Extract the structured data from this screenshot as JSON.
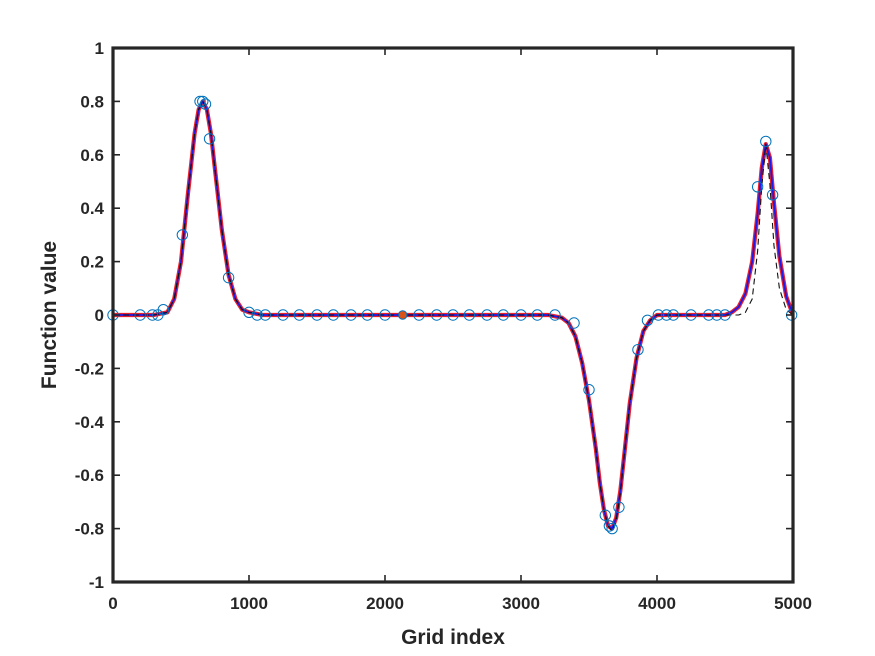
{
  "chart_data": {
    "type": "line",
    "title": "",
    "xlabel": "Grid index",
    "ylabel": "Function value",
    "xlim": [
      0,
      5000
    ],
    "ylim": [
      -1,
      1
    ],
    "xticks": [
      0,
      1000,
      2000,
      3000,
      4000,
      5000
    ],
    "yticks": [
      -1,
      -0.8,
      -0.6,
      -0.4,
      -0.2,
      0,
      0.2,
      0.4,
      0.6,
      0.8,
      1
    ],
    "xtick_labels": [
      "0",
      "1000",
      "2000",
      "3000",
      "4000",
      "5000"
    ],
    "ytick_labels": [
      "-1",
      "-0.8",
      "-0.6",
      "-0.4",
      "-0.2",
      "0",
      "0.2",
      "0.4",
      "0.6",
      "0.8",
      "1"
    ],
    "grid": false,
    "box": true,
    "series": [
      {
        "style": "solid-red",
        "color": "#e8202a",
        "x": [
          0,
          200,
          300,
          400,
          450,
          500,
          550,
          600,
          630,
          660,
          690,
          720,
          760,
          800,
          850,
          900,
          950,
          1000,
          1100,
          1200,
          1400,
          2000,
          3000,
          3200,
          3300,
          3350,
          3400,
          3450,
          3500,
          3550,
          3580,
          3610,
          3640,
          3670,
          3700,
          3730,
          3760,
          3800,
          3850,
          3900,
          3950,
          4000,
          4200,
          4500,
          4550,
          4600,
          4650,
          4700,
          4740,
          4770,
          4800,
          4830,
          4860,
          4900,
          4950,
          5000
        ],
        "y": [
          0,
          0,
          0,
          0.01,
          0.06,
          0.2,
          0.45,
          0.68,
          0.77,
          0.8,
          0.77,
          0.68,
          0.5,
          0.32,
          0.15,
          0.06,
          0.02,
          0.01,
          0,
          0,
          0,
          0,
          0,
          0,
          -0.01,
          -0.03,
          -0.08,
          -0.18,
          -0.32,
          -0.5,
          -0.63,
          -0.73,
          -0.79,
          -0.8,
          -0.76,
          -0.66,
          -0.52,
          -0.33,
          -0.16,
          -0.06,
          -0.02,
          0,
          0,
          0,
          0.01,
          0.03,
          0.08,
          0.2,
          0.38,
          0.55,
          0.64,
          0.59,
          0.42,
          0.22,
          0.07,
          0
        ]
      },
      {
        "style": "solid-blue",
        "color": "#1a1aee",
        "x": [
          0,
          200,
          300,
          400,
          450,
          500,
          550,
          600,
          630,
          660,
          690,
          720,
          760,
          800,
          850,
          900,
          950,
          1000,
          1100,
          1200,
          1400,
          2000,
          3000,
          3200,
          3300,
          3350,
          3400,
          3450,
          3500,
          3550,
          3580,
          3610,
          3640,
          3670,
          3700,
          3730,
          3760,
          3800,
          3850,
          3900,
          3950,
          4000,
          4200,
          4500,
          4550,
          4600,
          4650,
          4700,
          4740,
          4770,
          4800,
          4830,
          4860,
          4900,
          4950,
          5000
        ],
        "y": [
          0,
          0,
          0,
          0.01,
          0.06,
          0.2,
          0.45,
          0.68,
          0.77,
          0.8,
          0.77,
          0.68,
          0.5,
          0.32,
          0.15,
          0.06,
          0.02,
          0.01,
          0,
          0,
          0,
          0,
          0,
          0,
          -0.01,
          -0.03,
          -0.08,
          -0.18,
          -0.32,
          -0.5,
          -0.63,
          -0.73,
          -0.79,
          -0.8,
          -0.76,
          -0.66,
          -0.52,
          -0.33,
          -0.16,
          -0.06,
          -0.02,
          0,
          0,
          0,
          0.01,
          0.03,
          0.08,
          0.2,
          0.38,
          0.55,
          0.64,
          0.59,
          0.42,
          0.22,
          0.07,
          0
        ]
      },
      {
        "style": "dashed-black",
        "color": "#111111",
        "x": [
          0,
          200,
          300,
          400,
          450,
          500,
          550,
          600,
          630,
          660,
          690,
          720,
          760,
          800,
          850,
          900,
          950,
          1000,
          1100,
          1200,
          1400,
          2000,
          3000,
          3200,
          3300,
          3350,
          3400,
          3450,
          3500,
          3550,
          3580,
          3610,
          3640,
          3670,
          3700,
          3730,
          3760,
          3800,
          3850,
          3900,
          3950,
          4000,
          4200,
          4500,
          4550,
          4600,
          4650,
          4700,
          4740,
          4770,
          4800,
          4830,
          4860,
          4900,
          4950,
          5000
        ],
        "y": [
          0,
          0,
          0,
          0.01,
          0.06,
          0.2,
          0.45,
          0.68,
          0.77,
          0.8,
          0.77,
          0.68,
          0.5,
          0.32,
          0.15,
          0.06,
          0.02,
          0.01,
          0,
          0,
          0,
          0,
          0,
          0,
          -0.01,
          -0.03,
          -0.08,
          -0.18,
          -0.32,
          -0.5,
          -0.63,
          -0.73,
          -0.79,
          -0.81,
          -0.77,
          -0.67,
          -0.52,
          -0.33,
          -0.16,
          -0.06,
          -0.02,
          0,
          0,
          0,
          0,
          0,
          0.01,
          0.06,
          0.24,
          0.48,
          0.64,
          0.49,
          0.26,
          0.1,
          0.02,
          0
        ]
      }
    ],
    "markers": {
      "style": "open-circle",
      "color": "#0072bd",
      "x": [
        0,
        200,
        290,
        330,
        370,
        510,
        640,
        660,
        680,
        710,
        850,
        1000,
        1060,
        1120,
        1250,
        1370,
        1500,
        1620,
        1750,
        1870,
        2000,
        2250,
        2380,
        2500,
        2620,
        2750,
        2870,
        3000,
        3120,
        3250,
        3390,
        3500,
        3620,
        3650,
        3670,
        3720,
        3860,
        3930,
        4010,
        4070,
        4120,
        4250,
        4380,
        4440,
        4500,
        4740,
        4800,
        4850,
        4990
      ],
      "y": [
        0,
        0,
        0,
        0,
        0.02,
        0.3,
        0.8,
        0.8,
        0.79,
        0.66,
        0.14,
        0.01,
        0,
        0,
        0,
        0,
        0,
        0,
        0,
        0,
        0,
        0,
        0,
        0,
        0,
        0,
        0,
        0,
        0,
        0,
        -0.03,
        -0.28,
        -0.75,
        -0.79,
        -0.8,
        -0.72,
        -0.13,
        -0.02,
        0,
        0,
        0,
        0,
        0,
        0,
        0,
        0.48,
        0.65,
        0.45,
        0
      ]
    },
    "highlight_point": {
      "color": "#d95319",
      "x": 2130,
      "y": 0
    }
  }
}
